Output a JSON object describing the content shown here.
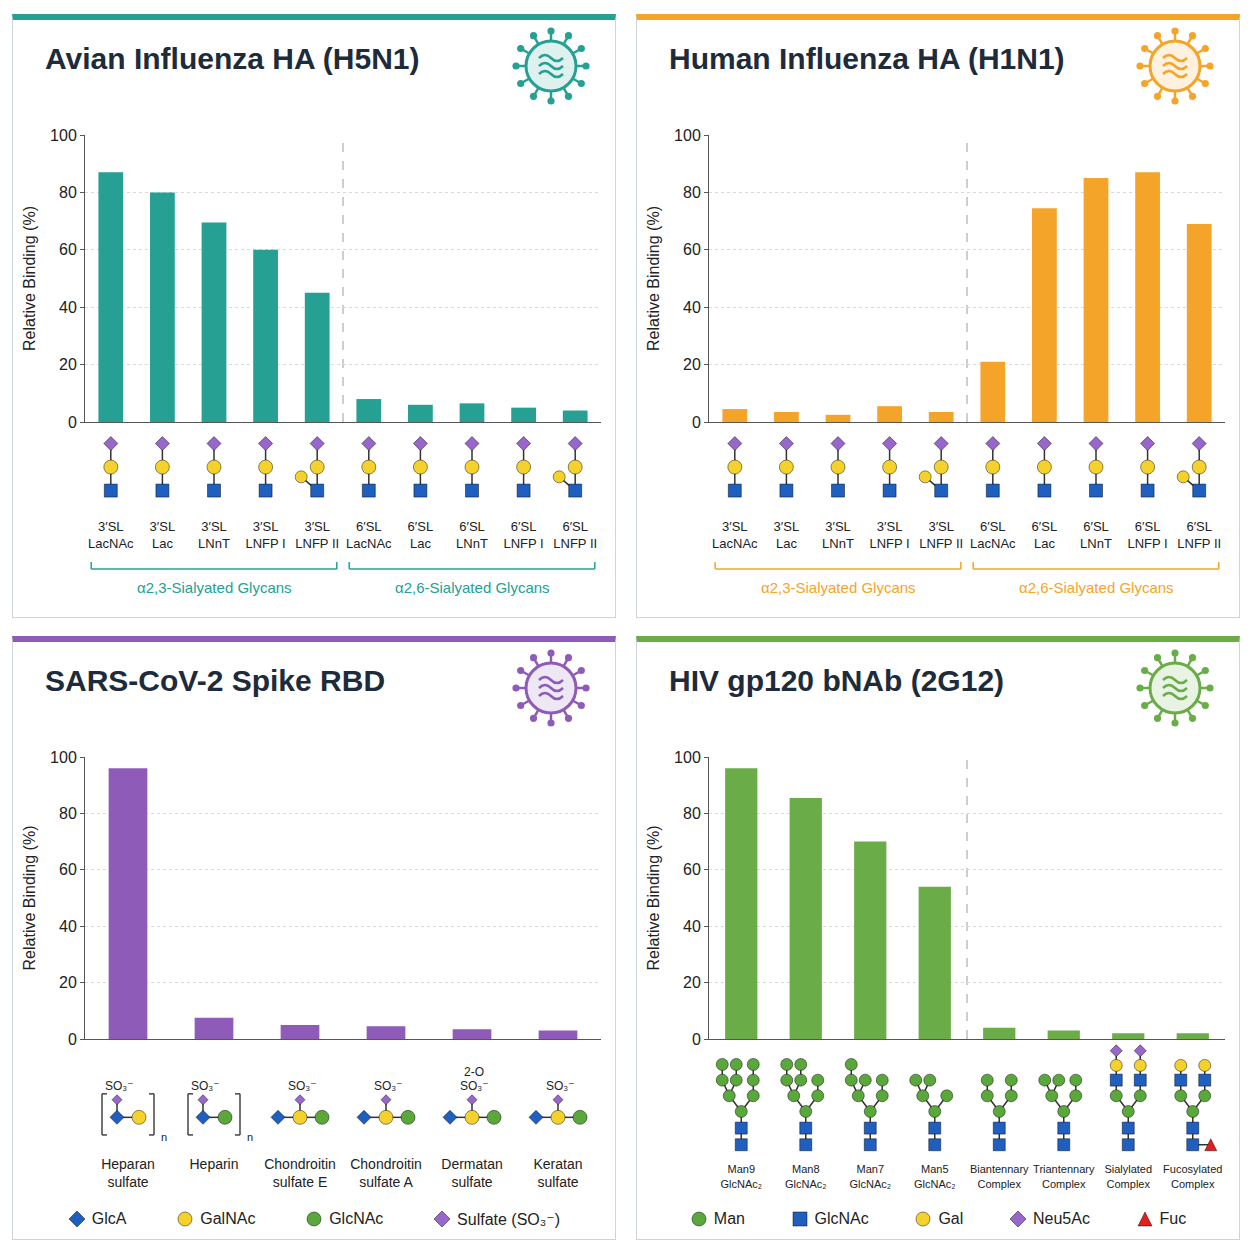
{
  "chart_data": [
    {
      "type": "bar",
      "title": "Avian Influenza HA (H5N1)",
      "y_label": "Relative Binding (%)",
      "categories": [
        "3′SL LacNAc",
        "3′SL Lac",
        "3′SL LNnT",
        "3′SL LNFP I",
        "3′SL LNFP II",
        "6′SL LacNAc",
        "6′SL Lac",
        "6′SL LNnT",
        "6′SL LNFP I",
        "6′SL LNFP II"
      ],
      "values": [
        87,
        80,
        69.5,
        60,
        45,
        8,
        6,
        6.5,
        5,
        4
      ],
      "color": "#25a093",
      "ylim": [
        0,
        100
      ],
      "yticks": [
        0,
        20,
        40,
        60,
        80,
        100
      ],
      "grid": true,
      "groups": [
        {
          "label": "α2,3-Sialyated Glycans",
          "start": 0,
          "end": 4
        },
        {
          "label": "α2,6-Sialyated Glycans",
          "start": 5,
          "end": 9
        }
      ]
    },
    {
      "type": "bar",
      "title": "Human Influenza HA (H1N1)",
      "y_label": "Relative Binding (%)",
      "categories": [
        "3′SL LacNAc",
        "3′SL Lac",
        "3′SL LNnT",
        "3′SL LNFP I",
        "3′SL LNFP II",
        "6′SL LacNAc",
        "6′SL Lac",
        "6′SL LNnT",
        "6′SL LNFP I",
        "6′SL LNFP II"
      ],
      "values": [
        4.5,
        3.5,
        2.5,
        5.5,
        3.5,
        21,
        74.5,
        85,
        87,
        69
      ],
      "color": "#f5a42a",
      "ylim": [
        0,
        100
      ],
      "yticks": [
        0,
        20,
        40,
        60,
        80,
        100
      ],
      "grid": true,
      "groups": [
        {
          "label": "α2,3-Sialyated Glycans",
          "start": 0,
          "end": 4
        },
        {
          "label": "α2,6-Sialyated Glycans",
          "start": 5,
          "end": 9
        }
      ]
    },
    {
      "type": "bar",
      "title": "SARS-CoV-2 Spike RBD",
      "y_label": "Relative Binding (%)",
      "categories": [
        "Heparan sulfate",
        "Heparin",
        "Chondroitin sulfate E",
        "Chondroitin sulfate A",
        "Dermatan sulfate",
        "Keratan sulfate"
      ],
      "values": [
        96,
        7.5,
        5,
        4.5,
        3.5,
        3
      ],
      "color": "#8e5cb8",
      "ylim": [
        0,
        100
      ],
      "yticks": [
        0,
        20,
        40,
        60,
        80,
        100
      ],
      "grid": true,
      "icon_labels": [
        [
          "SO₃⁻"
        ],
        [
          "SO₃⁻"
        ],
        [
          "SO₃⁻"
        ],
        [
          "SO₃⁻"
        ],
        [
          "2-O",
          "SO₃⁻"
        ],
        [
          "SO₃⁻"
        ]
      ],
      "repeat_labels": [
        "n",
        "n",
        null,
        null,
        null,
        null
      ],
      "symbol_key": [
        {
          "name": "GlcA",
          "marker": "diamond",
          "color": "#1f5fbf"
        },
        {
          "name": "GalNAc",
          "marker": "circle",
          "color": "#f5d22b"
        },
        {
          "name": "GlcNAc",
          "marker": "circle",
          "color": "#5aa83c"
        },
        {
          "name": "Sulfate (SO₃⁻)",
          "marker": "diamond",
          "color": "#9966cc"
        }
      ]
    },
    {
      "type": "bar",
      "title": "HIV gp120 bNAb (2G12)",
      "y_label": "Relative Binding (%)",
      "categories": [
        "Man9 GlcNAc₂",
        "Man8 GlcNAc₂",
        "Man7 GlcNAc₂",
        "Man5 GlcNAc₂",
        "Biantennary Complex",
        "Triantennary Complex",
        "Sialylated Complex",
        "Fucosylated Complex"
      ],
      "values": [
        96,
        85.5,
        70,
        54,
        4,
        3,
        2,
        2
      ],
      "color": "#6aac48",
      "ylim": [
        0,
        100
      ],
      "yticks": [
        0,
        20,
        40,
        60,
        80,
        100
      ],
      "grid": true,
      "groups": [
        {
          "start": 0,
          "end": 3
        },
        {
          "start": 4,
          "end": 7
        }
      ],
      "symbol_key": [
        {
          "name": "Man",
          "marker": "circle",
          "color": "#5aa83c"
        },
        {
          "name": "GlcNAc",
          "marker": "square",
          "color": "#1f5fbf"
        },
        {
          "name": "Gal",
          "marker": "circle",
          "color": "#f5d22b"
        },
        {
          "name": "Neu5Ac",
          "marker": "diamond",
          "color": "#9966cc"
        },
        {
          "name": "Fuc",
          "marker": "triangle",
          "color": "#e02020"
        }
      ]
    }
  ]
}
